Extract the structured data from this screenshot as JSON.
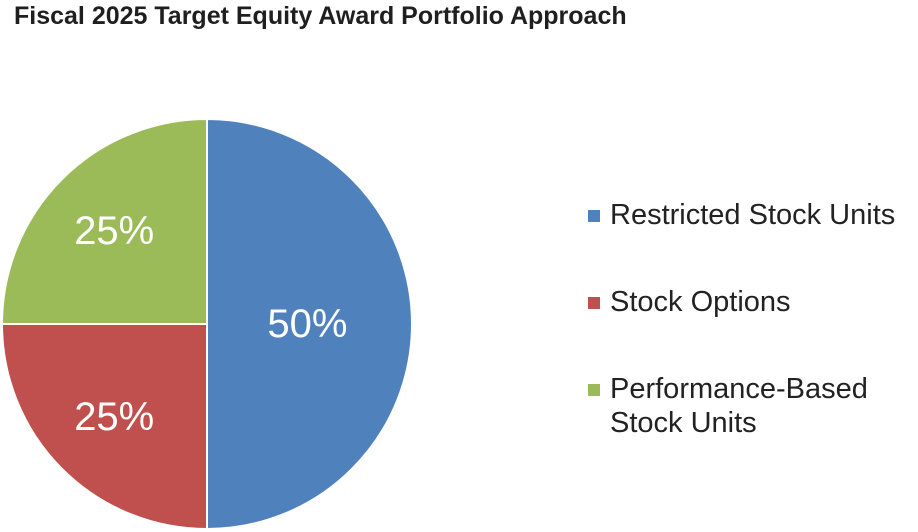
{
  "chart_data": {
    "type": "pie",
    "title": "Fiscal 2025 Target Equity Award Portfolio Approach",
    "slices": [
      {
        "name": "Restricted Stock Units",
        "value": 50,
        "label": "50%",
        "color": "#4f81bd"
      },
      {
        "name": "Stock Options",
        "value": 25,
        "label": "25%",
        "color": "#c0504d"
      },
      {
        "name": "Performance-Based Stock Units",
        "value": 25,
        "label": "25%",
        "color": "#9bbb59"
      }
    ],
    "legend_position": "right"
  }
}
